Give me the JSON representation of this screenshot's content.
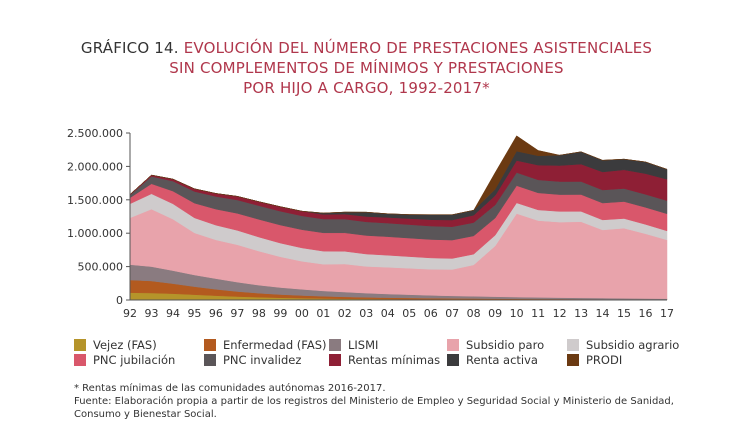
{
  "title": {
    "lead": "GRÁFICO 14.",
    "line1": "EVOLUCIÓN DEL NÚMERO DE PRESTACIONES ASISTENCIALES",
    "line2": "SIN COMPLEMENTOS DE MÍNIMOS Y PRESTACIONES",
    "line3": "POR HIJO A CARGO, 1992-2017*"
  },
  "notes": {
    "footnote": "* Rentas mínimas de las comunidades autónomas 2016-2017.",
    "source": "Fuente: Elaboración propia a partir de los registros del Ministerio de Empleo y Seguridad Social y Ministerio de Sanidad, Consumo y Bienestar Social."
  },
  "chart_data": {
    "type": "area",
    "stacked": true,
    "grid": false,
    "legend_position": "bottom",
    "ylim": [
      0,
      2500000
    ],
    "yticks": [
      {
        "value": 0,
        "label": "0"
      },
      {
        "value": 500000,
        "label": "500.000"
      },
      {
        "value": 1000000,
        "label": "1.000.000"
      },
      {
        "value": 1500000,
        "label": "1.500.000"
      },
      {
        "value": 2000000,
        "label": "2.000.000"
      },
      {
        "value": 2500000,
        "label": "2.500.000"
      }
    ],
    "categories": [
      "92",
      "93",
      "94",
      "95",
      "96",
      "97",
      "98",
      "99",
      "00",
      "01",
      "02",
      "03",
      "04",
      "05",
      "06",
      "07",
      "08",
      "09",
      "10",
      "11",
      "12",
      "13",
      "14",
      "15",
      "16",
      "17"
    ],
    "series": [
      {
        "name": "Vejez (FAS)",
        "color": "#b5942a",
        "values": [
          110000,
          105000,
          95000,
          80000,
          65000,
          52000,
          42000,
          34000,
          28000,
          23000,
          19000,
          16000,
          14000,
          12000,
          10000,
          9000,
          8000,
          7000,
          6000,
          5000,
          5000,
          4000,
          4000,
          3000,
          3000,
          3000
        ]
      },
      {
        "name": "Enfermedad (FAS)",
        "color": "#b35a1f",
        "values": [
          190000,
          180000,
          150000,
          120000,
          95000,
          75000,
          60000,
          48000,
          40000,
          33000,
          28000,
          24000,
          21000,
          19000,
          17000,
          15000,
          14000,
          13000,
          12000,
          11000,
          10000,
          9000,
          8000,
          7000,
          6000,
          5000
        ]
      },
      {
        "name": "LISMI",
        "color": "#8a7b80",
        "values": [
          230000,
          215000,
          195000,
          175000,
          160000,
          140000,
          120000,
          105000,
          92000,
          80000,
          72000,
          63000,
          55000,
          49000,
          43000,
          38000,
          34000,
          30000,
          26000,
          23000,
          21000,
          19000,
          17000,
          15000,
          13000,
          12000
        ]
      },
      {
        "name": "Subsidio paro",
        "color": "#e8a3ab",
        "values": [
          700000,
          860000,
          770000,
          630000,
          580000,
          560000,
          510000,
          460000,
          420000,
          400000,
          420000,
          400000,
          400000,
          395000,
          390000,
          395000,
          470000,
          760000,
          1250000,
          1150000,
          1130000,
          1140000,
          1020000,
          1050000,
          970000,
          880000
        ]
      },
      {
        "name": "Subsidio agrario",
        "color": "#cfcbcc",
        "values": [
          210000,
          230000,
          230000,
          225000,
          220000,
          215000,
          210000,
          205000,
          200000,
          195000,
          190000,
          185000,
          180000,
          175000,
          170000,
          165000,
          160000,
          160000,
          160000,
          160000,
          160000,
          155000,
          150000,
          145000,
          140000,
          135000
        ]
      },
      {
        "name": "PNC jubilación",
        "color": "#d9576b",
        "values": [
          90000,
          150000,
          190000,
          220000,
          240000,
          255000,
          265000,
          270000,
          273000,
          275000,
          277000,
          278000,
          278000,
          277000,
          276000,
          275000,
          274000,
          257000,
          258000,
          255000,
          252000,
          252000,
          253000,
          254000,
          255000,
          256000
        ]
      },
      {
        "name": "PNC invalidez",
        "color": "#5a5558",
        "values": [
          40000,
          110000,
          150000,
          175000,
          190000,
          200000,
          205000,
          207000,
          207000,
          206000,
          205000,
          204000,
          203000,
          202000,
          201000,
          200000,
          199000,
          196000,
          196000,
          195000,
          195000,
          195000,
          195000,
          195000,
          195000,
          196000
        ]
      },
      {
        "name": "Rentas mínimas",
        "color": "#8e1f35",
        "values": [
          10000,
          20000,
          30000,
          40000,
          45000,
          55000,
          60000,
          68000,
          70000,
          70000,
          75000,
          80000,
          85000,
          90000,
          95000,
          100000,
          110000,
          140000,
          180000,
          220000,
          240000,
          260000,
          270000,
          280000,
          310000,
          320000
        ]
      },
      {
        "name": "Renta activa",
        "color": "#3b3b3d",
        "values": [
          0,
          0,
          0,
          0,
          0,
          0,
          0,
          0,
          0,
          20000,
          30000,
          65000,
          55000,
          60000,
          75000,
          80000,
          75000,
          95000,
          140000,
          140000,
          155000,
          185000,
          175000,
          160000,
          175000,
          150000
        ]
      },
      {
        "name": "PRODI",
        "color": "#6b3a12",
        "values": [
          0,
          0,
          0,
          0,
          0,
          0,
          0,
          0,
          0,
          0,
          0,
          0,
          0,
          0,
          0,
          0,
          0,
          250000,
          230000,
          80000,
          0,
          0,
          0,
          0,
          0,
          0
        ]
      }
    ]
  }
}
